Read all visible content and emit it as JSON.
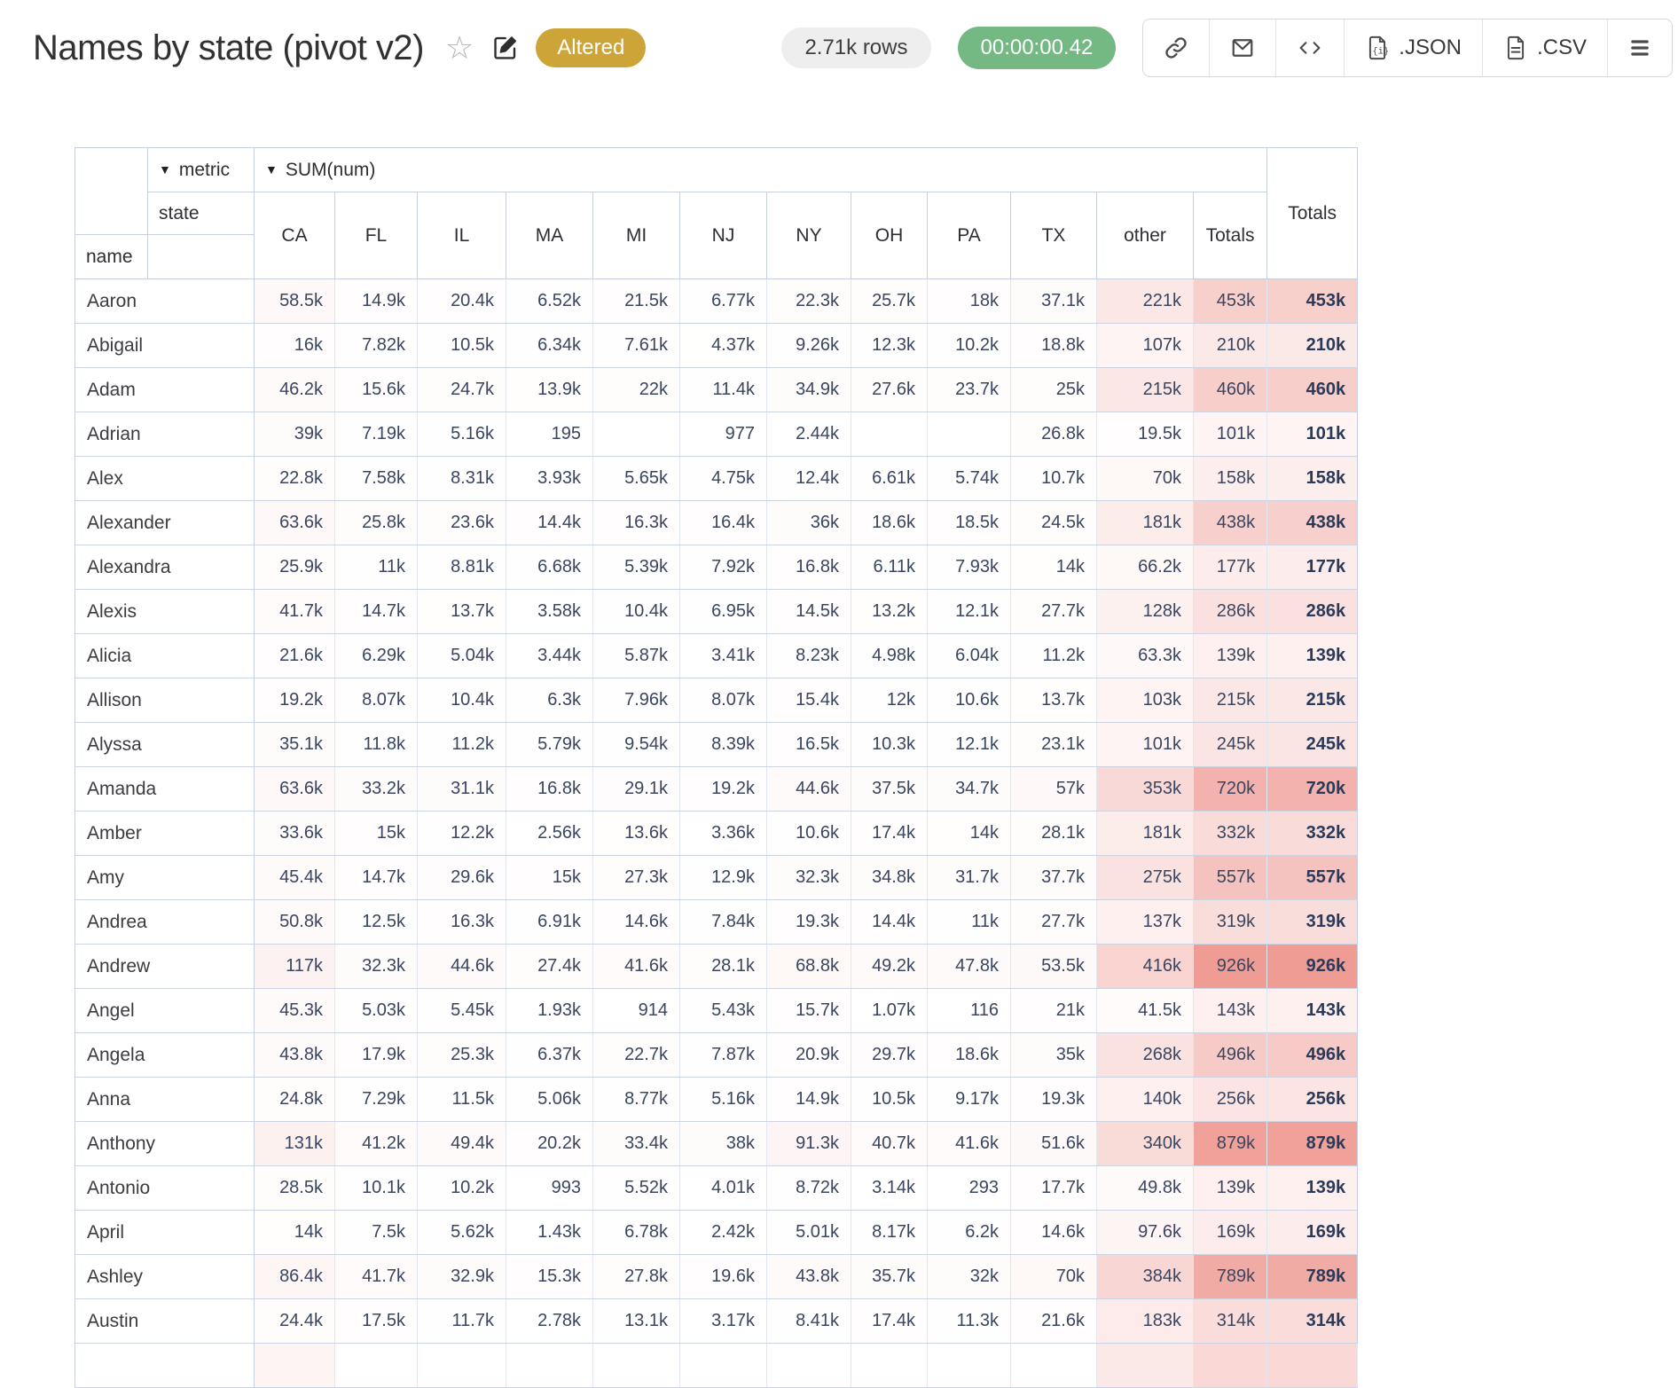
{
  "header": {
    "title": "Names by state (pivot v2)",
    "altered_badge": "Altered",
    "rows_badge": "2.71k rows",
    "timer_badge": "00:00:00.42",
    "toolbar": {
      "json_label": ".JSON",
      "csv_label": ".CSV"
    }
  },
  "colors": {
    "badge_altered": "#cca438",
    "badge_timer": "#74b883",
    "heat_max_hint": "#ef9c95"
  },
  "pivot": {
    "dropdown_glyph": "▼",
    "metric_label": "metric",
    "metric_value": "SUM(num)",
    "state_label": "state",
    "name_label": "name",
    "row_totals_label": "Totals",
    "columns": [
      "CA",
      "FL",
      "IL",
      "MA",
      "MI",
      "NJ",
      "NY",
      "OH",
      "PA",
      "TX",
      "other",
      "Totals"
    ],
    "rows": [
      {
        "name": "Aaron",
        "values": [
          "58.5k",
          "14.9k",
          "20.4k",
          "6.52k",
          "21.5k",
          "6.77k",
          "22.3k",
          "25.7k",
          "18k",
          "37.1k",
          "221k",
          "453k"
        ],
        "total": "453k"
      },
      {
        "name": "Abigail",
        "values": [
          "16k",
          "7.82k",
          "10.5k",
          "6.34k",
          "7.61k",
          "4.37k",
          "9.26k",
          "12.3k",
          "10.2k",
          "18.8k",
          "107k",
          "210k"
        ],
        "total": "210k"
      },
      {
        "name": "Adam",
        "values": [
          "46.2k",
          "15.6k",
          "24.7k",
          "13.9k",
          "22k",
          "11.4k",
          "34.9k",
          "27.6k",
          "23.7k",
          "25k",
          "215k",
          "460k"
        ],
        "total": "460k"
      },
      {
        "name": "Adrian",
        "values": [
          "39k",
          "7.19k",
          "5.16k",
          "195",
          "",
          "977",
          "2.44k",
          "",
          "",
          "26.8k",
          "19.5k",
          "101k"
        ],
        "total": "101k"
      },
      {
        "name": "Alex",
        "values": [
          "22.8k",
          "7.58k",
          "8.31k",
          "3.93k",
          "5.65k",
          "4.75k",
          "12.4k",
          "6.61k",
          "5.74k",
          "10.7k",
          "70k",
          "158k"
        ],
        "total": "158k"
      },
      {
        "name": "Alexander",
        "values": [
          "63.6k",
          "25.8k",
          "23.6k",
          "14.4k",
          "16.3k",
          "16.4k",
          "36k",
          "18.6k",
          "18.5k",
          "24.5k",
          "181k",
          "438k"
        ],
        "total": "438k"
      },
      {
        "name": "Alexandra",
        "values": [
          "25.9k",
          "11k",
          "8.81k",
          "6.68k",
          "5.39k",
          "7.92k",
          "16.8k",
          "6.11k",
          "7.93k",
          "14k",
          "66.2k",
          "177k"
        ],
        "total": "177k"
      },
      {
        "name": "Alexis",
        "values": [
          "41.7k",
          "14.7k",
          "13.7k",
          "3.58k",
          "10.4k",
          "6.95k",
          "14.5k",
          "13.2k",
          "12.1k",
          "27.7k",
          "128k",
          "286k"
        ],
        "total": "286k"
      },
      {
        "name": "Alicia",
        "values": [
          "21.6k",
          "6.29k",
          "5.04k",
          "3.44k",
          "5.87k",
          "3.41k",
          "8.23k",
          "4.98k",
          "6.04k",
          "11.2k",
          "63.3k",
          "139k"
        ],
        "total": "139k"
      },
      {
        "name": "Allison",
        "values": [
          "19.2k",
          "8.07k",
          "10.4k",
          "6.3k",
          "7.96k",
          "8.07k",
          "15.4k",
          "12k",
          "10.6k",
          "13.7k",
          "103k",
          "215k"
        ],
        "total": "215k"
      },
      {
        "name": "Alyssa",
        "values": [
          "35.1k",
          "11.8k",
          "11.2k",
          "5.79k",
          "9.54k",
          "8.39k",
          "16.5k",
          "10.3k",
          "12.1k",
          "23.1k",
          "101k",
          "245k"
        ],
        "total": "245k"
      },
      {
        "name": "Amanda",
        "values": [
          "63.6k",
          "33.2k",
          "31.1k",
          "16.8k",
          "29.1k",
          "19.2k",
          "44.6k",
          "37.5k",
          "34.7k",
          "57k",
          "353k",
          "720k"
        ],
        "total": "720k"
      },
      {
        "name": "Amber",
        "values": [
          "33.6k",
          "15k",
          "12.2k",
          "2.56k",
          "13.6k",
          "3.36k",
          "10.6k",
          "17.4k",
          "14k",
          "28.1k",
          "181k",
          "332k"
        ],
        "total": "332k"
      },
      {
        "name": "Amy",
        "values": [
          "45.4k",
          "14.7k",
          "29.6k",
          "15k",
          "27.3k",
          "12.9k",
          "32.3k",
          "34.8k",
          "31.7k",
          "37.7k",
          "275k",
          "557k"
        ],
        "total": "557k"
      },
      {
        "name": "Andrea",
        "values": [
          "50.8k",
          "12.5k",
          "16.3k",
          "6.91k",
          "14.6k",
          "7.84k",
          "19.3k",
          "14.4k",
          "11k",
          "27.7k",
          "137k",
          "319k"
        ],
        "total": "319k"
      },
      {
        "name": "Andrew",
        "values": [
          "117k",
          "32.3k",
          "44.6k",
          "27.4k",
          "41.6k",
          "28.1k",
          "68.8k",
          "49.2k",
          "47.8k",
          "53.5k",
          "416k",
          "926k"
        ],
        "total": "926k"
      },
      {
        "name": "Angel",
        "values": [
          "45.3k",
          "5.03k",
          "5.45k",
          "1.93k",
          "914",
          "5.43k",
          "15.7k",
          "1.07k",
          "116",
          "21k",
          "41.5k",
          "143k"
        ],
        "total": "143k"
      },
      {
        "name": "Angela",
        "values": [
          "43.8k",
          "17.9k",
          "25.3k",
          "6.37k",
          "22.7k",
          "7.87k",
          "20.9k",
          "29.7k",
          "18.6k",
          "35k",
          "268k",
          "496k"
        ],
        "total": "496k"
      },
      {
        "name": "Anna",
        "values": [
          "24.8k",
          "7.29k",
          "11.5k",
          "5.06k",
          "8.77k",
          "5.16k",
          "14.9k",
          "10.5k",
          "9.17k",
          "19.3k",
          "140k",
          "256k"
        ],
        "total": "256k"
      },
      {
        "name": "Anthony",
        "values": [
          "131k",
          "41.2k",
          "49.4k",
          "20.2k",
          "33.4k",
          "38k",
          "91.3k",
          "40.7k",
          "41.6k",
          "51.6k",
          "340k",
          "879k"
        ],
        "total": "879k"
      },
      {
        "name": "Antonio",
        "values": [
          "28.5k",
          "10.1k",
          "10.2k",
          "993",
          "5.52k",
          "4.01k",
          "8.72k",
          "3.14k",
          "293",
          "17.7k",
          "49.8k",
          "139k"
        ],
        "total": "139k"
      },
      {
        "name": "April",
        "values": [
          "14k",
          "7.5k",
          "5.62k",
          "1.43k",
          "6.78k",
          "2.42k",
          "5.01k",
          "8.17k",
          "6.2k",
          "14.6k",
          "97.6k",
          "169k"
        ],
        "total": "169k"
      },
      {
        "name": "Ashley",
        "values": [
          "86.4k",
          "41.7k",
          "32.9k",
          "15.3k",
          "27.8k",
          "19.6k",
          "43.8k",
          "35.7k",
          "32k",
          "70k",
          "384k",
          "789k"
        ],
        "total": "789k"
      },
      {
        "name": "Austin",
        "values": [
          "24.4k",
          "17.5k",
          "11.7k",
          "2.78k",
          "13.1k",
          "3.17k",
          "8.41k",
          "17.4k",
          "11.3k",
          "21.6k",
          "183k",
          "314k"
        ],
        "total": "314k"
      }
    ],
    "partial_row_cell_colors": [
      "#fdf5f4",
      "#ffffff",
      "#ffffff",
      "#ffffff",
      "#ffffff",
      "#ffffff",
      "#ffffff",
      "#ffffff",
      "#ffffff",
      "#ffffff",
      "#fbe9e7",
      "#f9d8d5",
      "#f9d8d5"
    ]
  }
}
